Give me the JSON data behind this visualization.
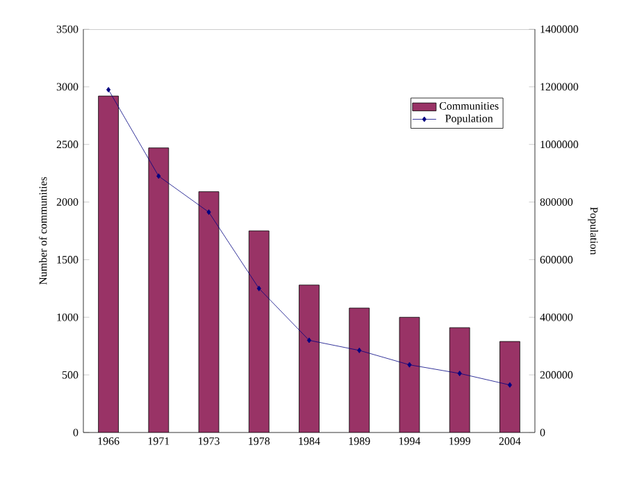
{
  "chart_data": {
    "type": "bar",
    "ylabel": "Number of communities",
    "y2label": "Population",
    "categories": [
      "1966",
      "1971",
      "1973",
      "1978",
      "1984",
      "1989",
      "1994",
      "1999",
      "2004"
    ],
    "series": [
      {
        "name": "Communities",
        "color": "#993366",
        "values": [
          2920,
          2470,
          2090,
          1750,
          1280,
          1080,
          1000,
          910,
          790
        ]
      },
      {
        "name": "Population",
        "type": "line",
        "axis": "y2",
        "color": "#000080",
        "marker": "diamond",
        "values": [
          1190000,
          890000,
          765000,
          500000,
          320000,
          285000,
          235000,
          205000,
          165000
        ]
      }
    ],
    "ylim": [
      0,
      3500
    ],
    "yticks": [
      0,
      500,
      1000,
      1500,
      2000,
      2500,
      3000,
      3500
    ],
    "y2lim": [
      0,
      1400000
    ],
    "y2ticks": [
      0,
      200000,
      400000,
      600000,
      800000,
      1000000,
      1200000,
      1400000
    ],
    "legend": "top right",
    "grid": false
  }
}
